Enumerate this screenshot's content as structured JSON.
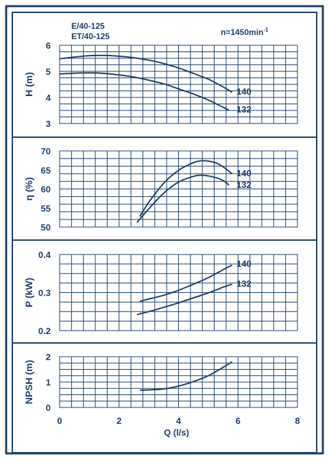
{
  "chart_data": [
    {
      "type": "line",
      "panel": "head",
      "header": {
        "model_line1": "E/40-125",
        "model_line2": "ET/40-125",
        "speed_base": "n=1450min",
        "speed_exp": "-1"
      },
      "ylabel": "H (m)",
      "ylim": [
        3,
        6
      ],
      "yticks": [
        "3",
        "4",
        "5",
        "6"
      ],
      "xlim": [
        0,
        8
      ],
      "series": [
        {
          "name": "140",
          "points": [
            [
              0,
              5.48
            ],
            [
              0.5,
              5.55
            ],
            [
              1,
              5.6
            ],
            [
              1.5,
              5.61
            ],
            [
              2,
              5.58
            ],
            [
              2.5,
              5.52
            ],
            [
              3,
              5.43
            ],
            [
              3.5,
              5.3
            ],
            [
              4,
              5.13
            ],
            [
              4.5,
              4.92
            ],
            [
              5,
              4.7
            ],
            [
              5.5,
              4.4
            ],
            [
              5.8,
              4.2
            ]
          ]
        },
        {
          "name": "132",
          "points": [
            [
              0,
              4.9
            ],
            [
              0.5,
              4.93
            ],
            [
              1,
              4.94
            ],
            [
              1.5,
              4.92
            ],
            [
              2,
              4.86
            ],
            [
              2.5,
              4.78
            ],
            [
              3,
              4.66
            ],
            [
              3.5,
              4.52
            ],
            [
              4,
              4.33
            ],
            [
              4.5,
              4.13
            ],
            [
              5,
              3.9
            ],
            [
              5.5,
              3.62
            ],
            [
              5.7,
              3.5
            ]
          ]
        }
      ]
    },
    {
      "type": "line",
      "panel": "efficiency",
      "ylabel": "η (%)",
      "ylim": [
        50,
        70
      ],
      "yticks": [
        "50",
        "55",
        "60",
        "65",
        "70"
      ],
      "xlim": [
        0,
        8
      ],
      "series": [
        {
          "name": "140",
          "points": [
            [
              2.7,
              52.8
            ],
            [
              3,
              56.5
            ],
            [
              3.5,
              61.5
            ],
            [
              4,
              64.9
            ],
            [
              4.5,
              66.9
            ],
            [
              4.8,
              67.4
            ],
            [
              5.2,
              67
            ],
            [
              5.5,
              65.8
            ],
            [
              5.8,
              64
            ]
          ]
        },
        {
          "name": "132",
          "points": [
            [
              2.6,
              51.2
            ],
            [
              3,
              54.8
            ],
            [
              3.5,
              58.9
            ],
            [
              4,
              61.8
            ],
            [
              4.5,
              63.3
            ],
            [
              4.8,
              63.6
            ],
            [
              5.2,
              63.1
            ],
            [
              5.5,
              62.2
            ],
            [
              5.7,
              61
            ]
          ]
        }
      ]
    },
    {
      "type": "line",
      "panel": "power",
      "ylabel": "P (kW)",
      "ylim": [
        0.2,
        0.4
      ],
      "yticks": [
        "0.2",
        "0.3",
        "0.4"
      ],
      "xlim": [
        0,
        8
      ],
      "series": [
        {
          "name": "140",
          "points": [
            [
              2.7,
              0.277
            ],
            [
              3,
              0.283
            ],
            [
              3.5,
              0.293
            ],
            [
              4,
              0.306
            ],
            [
              4.5,
              0.322
            ],
            [
              5,
              0.339
            ],
            [
              5.5,
              0.36
            ],
            [
              5.8,
              0.372
            ]
          ]
        },
        {
          "name": "132",
          "points": [
            [
              2.6,
              0.242
            ],
            [
              3,
              0.25
            ],
            [
              3.5,
              0.261
            ],
            [
              4,
              0.273
            ],
            [
              4.5,
              0.286
            ],
            [
              5,
              0.299
            ],
            [
              5.5,
              0.314
            ],
            [
              5.8,
              0.322
            ]
          ]
        }
      ]
    },
    {
      "type": "line",
      "panel": "npsh",
      "ylabel": "NPSH (m)",
      "ylim": [
        0,
        2
      ],
      "yticks": [
        "0",
        "1",
        "2"
      ],
      "xlim": [
        0,
        8
      ],
      "xticks": [
        "0",
        "2",
        "4",
        "6",
        "8"
      ],
      "xlabel": "Q (l/s)",
      "series": [
        {
          "points": [
            [
              2.7,
              0.68
            ],
            [
              3,
              0.69
            ],
            [
              3.5,
              0.73
            ],
            [
              4,
              0.84
            ],
            [
              4.5,
              1.02
            ],
            [
              5,
              1.25
            ],
            [
              5.5,
              1.58
            ],
            [
              5.8,
              1.8
            ]
          ]
        }
      ]
    }
  ]
}
